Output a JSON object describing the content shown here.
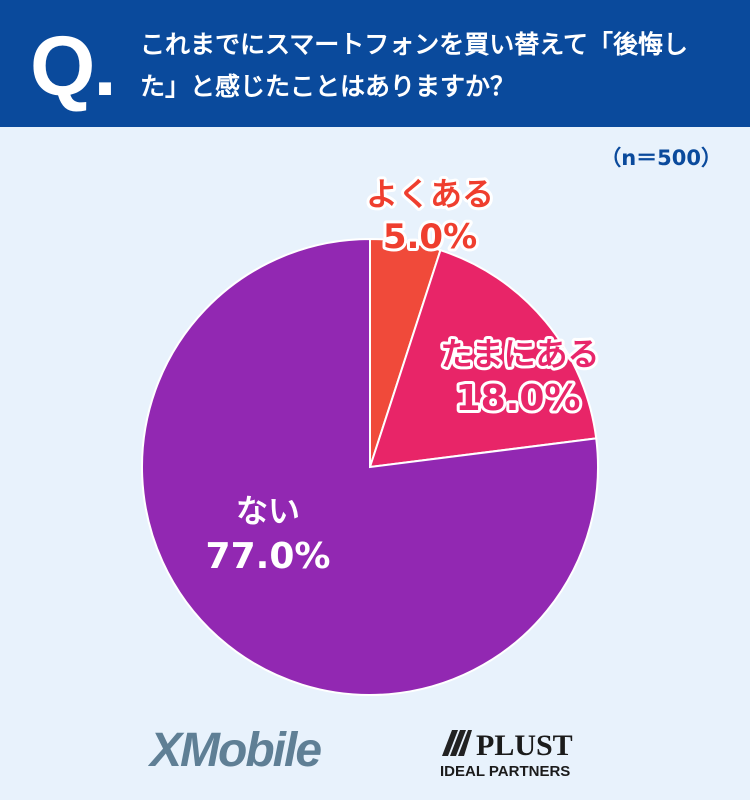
{
  "header": {
    "q_mark": "Q.",
    "question": "これまでにスマートフォンを買い替えて「後悔した」と感じたことはありますか？"
  },
  "sample_note": "（n＝500）",
  "colors": {
    "header_bg": "#0a4a9c",
    "page_bg": "#e8f2fc",
    "label_outline": "#ffffff"
  },
  "chart_data": {
    "type": "pie",
    "title": "",
    "start_angle_deg": 0,
    "direction": "clockwise",
    "slices": [
      {
        "label": "よくある",
        "value": 5.0,
        "display": "5.0%",
        "color": "#f04a3a",
        "label_color": "#ef3e2e"
      },
      {
        "label": "たまにある",
        "value": 18.0,
        "display": "18.0%",
        "color": "#e82568",
        "label_color": "#e8266a"
      },
      {
        "label": "ない",
        "value": 77.0,
        "display": "77.0%",
        "color": "#9228b2",
        "label_color": "#ffffff"
      }
    ]
  },
  "logos": {
    "xmobile": "XMobile",
    "plust": "PLUST",
    "plust_sub": "IDEAL PARTNERS"
  }
}
